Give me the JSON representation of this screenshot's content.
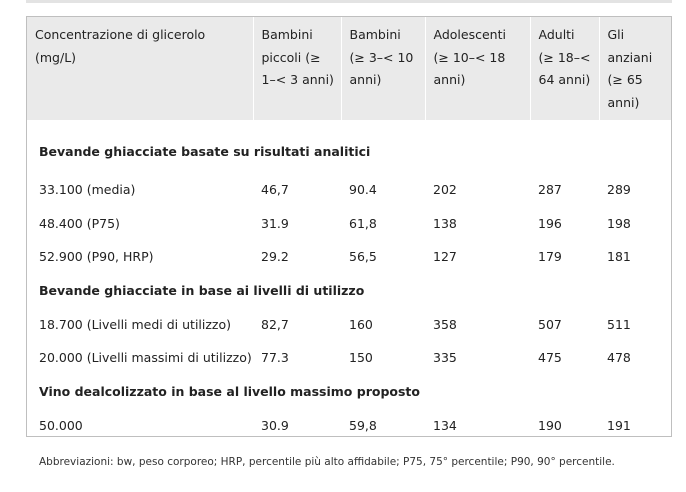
{
  "table": {
    "headers": [
      "Concentrazione di glicerolo (mg/L)",
      "Bambini piccoli (≥ 1–< 3 anni)",
      "Bambini (≥ 3–< 10 anni)",
      "Adolescenti (≥ 10–< 18 anni)",
      "Adulti (≥ 18–< 64 anni)",
      "Gli anziani (≥ 65 anni)"
    ],
    "sections": [
      {
        "title": "Bevande ghiacciate basate su risultati analitici",
        "rows": [
          [
            "33.100 (media)",
            "46,7",
            "90.4",
            "202",
            "287",
            "289"
          ],
          [
            "48.400 (P75)",
            "31.9",
            "61,8",
            "138",
            "196",
            "198"
          ],
          [
            "52.900 (P90, HRP)",
            "29.2",
            "56,5",
            "127",
            "179",
            "181"
          ]
        ]
      },
      {
        "title": "Bevande ghiacciate in base ai livelli di utilizzo",
        "rows": [
          [
            "18.700 (Livelli medi di utilizzo)",
            "82,7",
            "160",
            "358",
            "507",
            "511"
          ],
          [
            "20.000 (Livelli massimi di utilizzo)",
            "77.3",
            "150",
            "335",
            "475",
            "478"
          ]
        ]
      },
      {
        "title": "Vino dealcolizzato in base al livello massimo proposto",
        "rows": [
          [
            "50.000",
            "30.9",
            "59,8",
            "134",
            "190",
            "191"
          ]
        ]
      }
    ]
  },
  "footnote": "Abbreviazioni: bw, peso corporeo; HRP, percentile più alto affidabile; P75, 75° percentile; P90, 90° percentile."
}
